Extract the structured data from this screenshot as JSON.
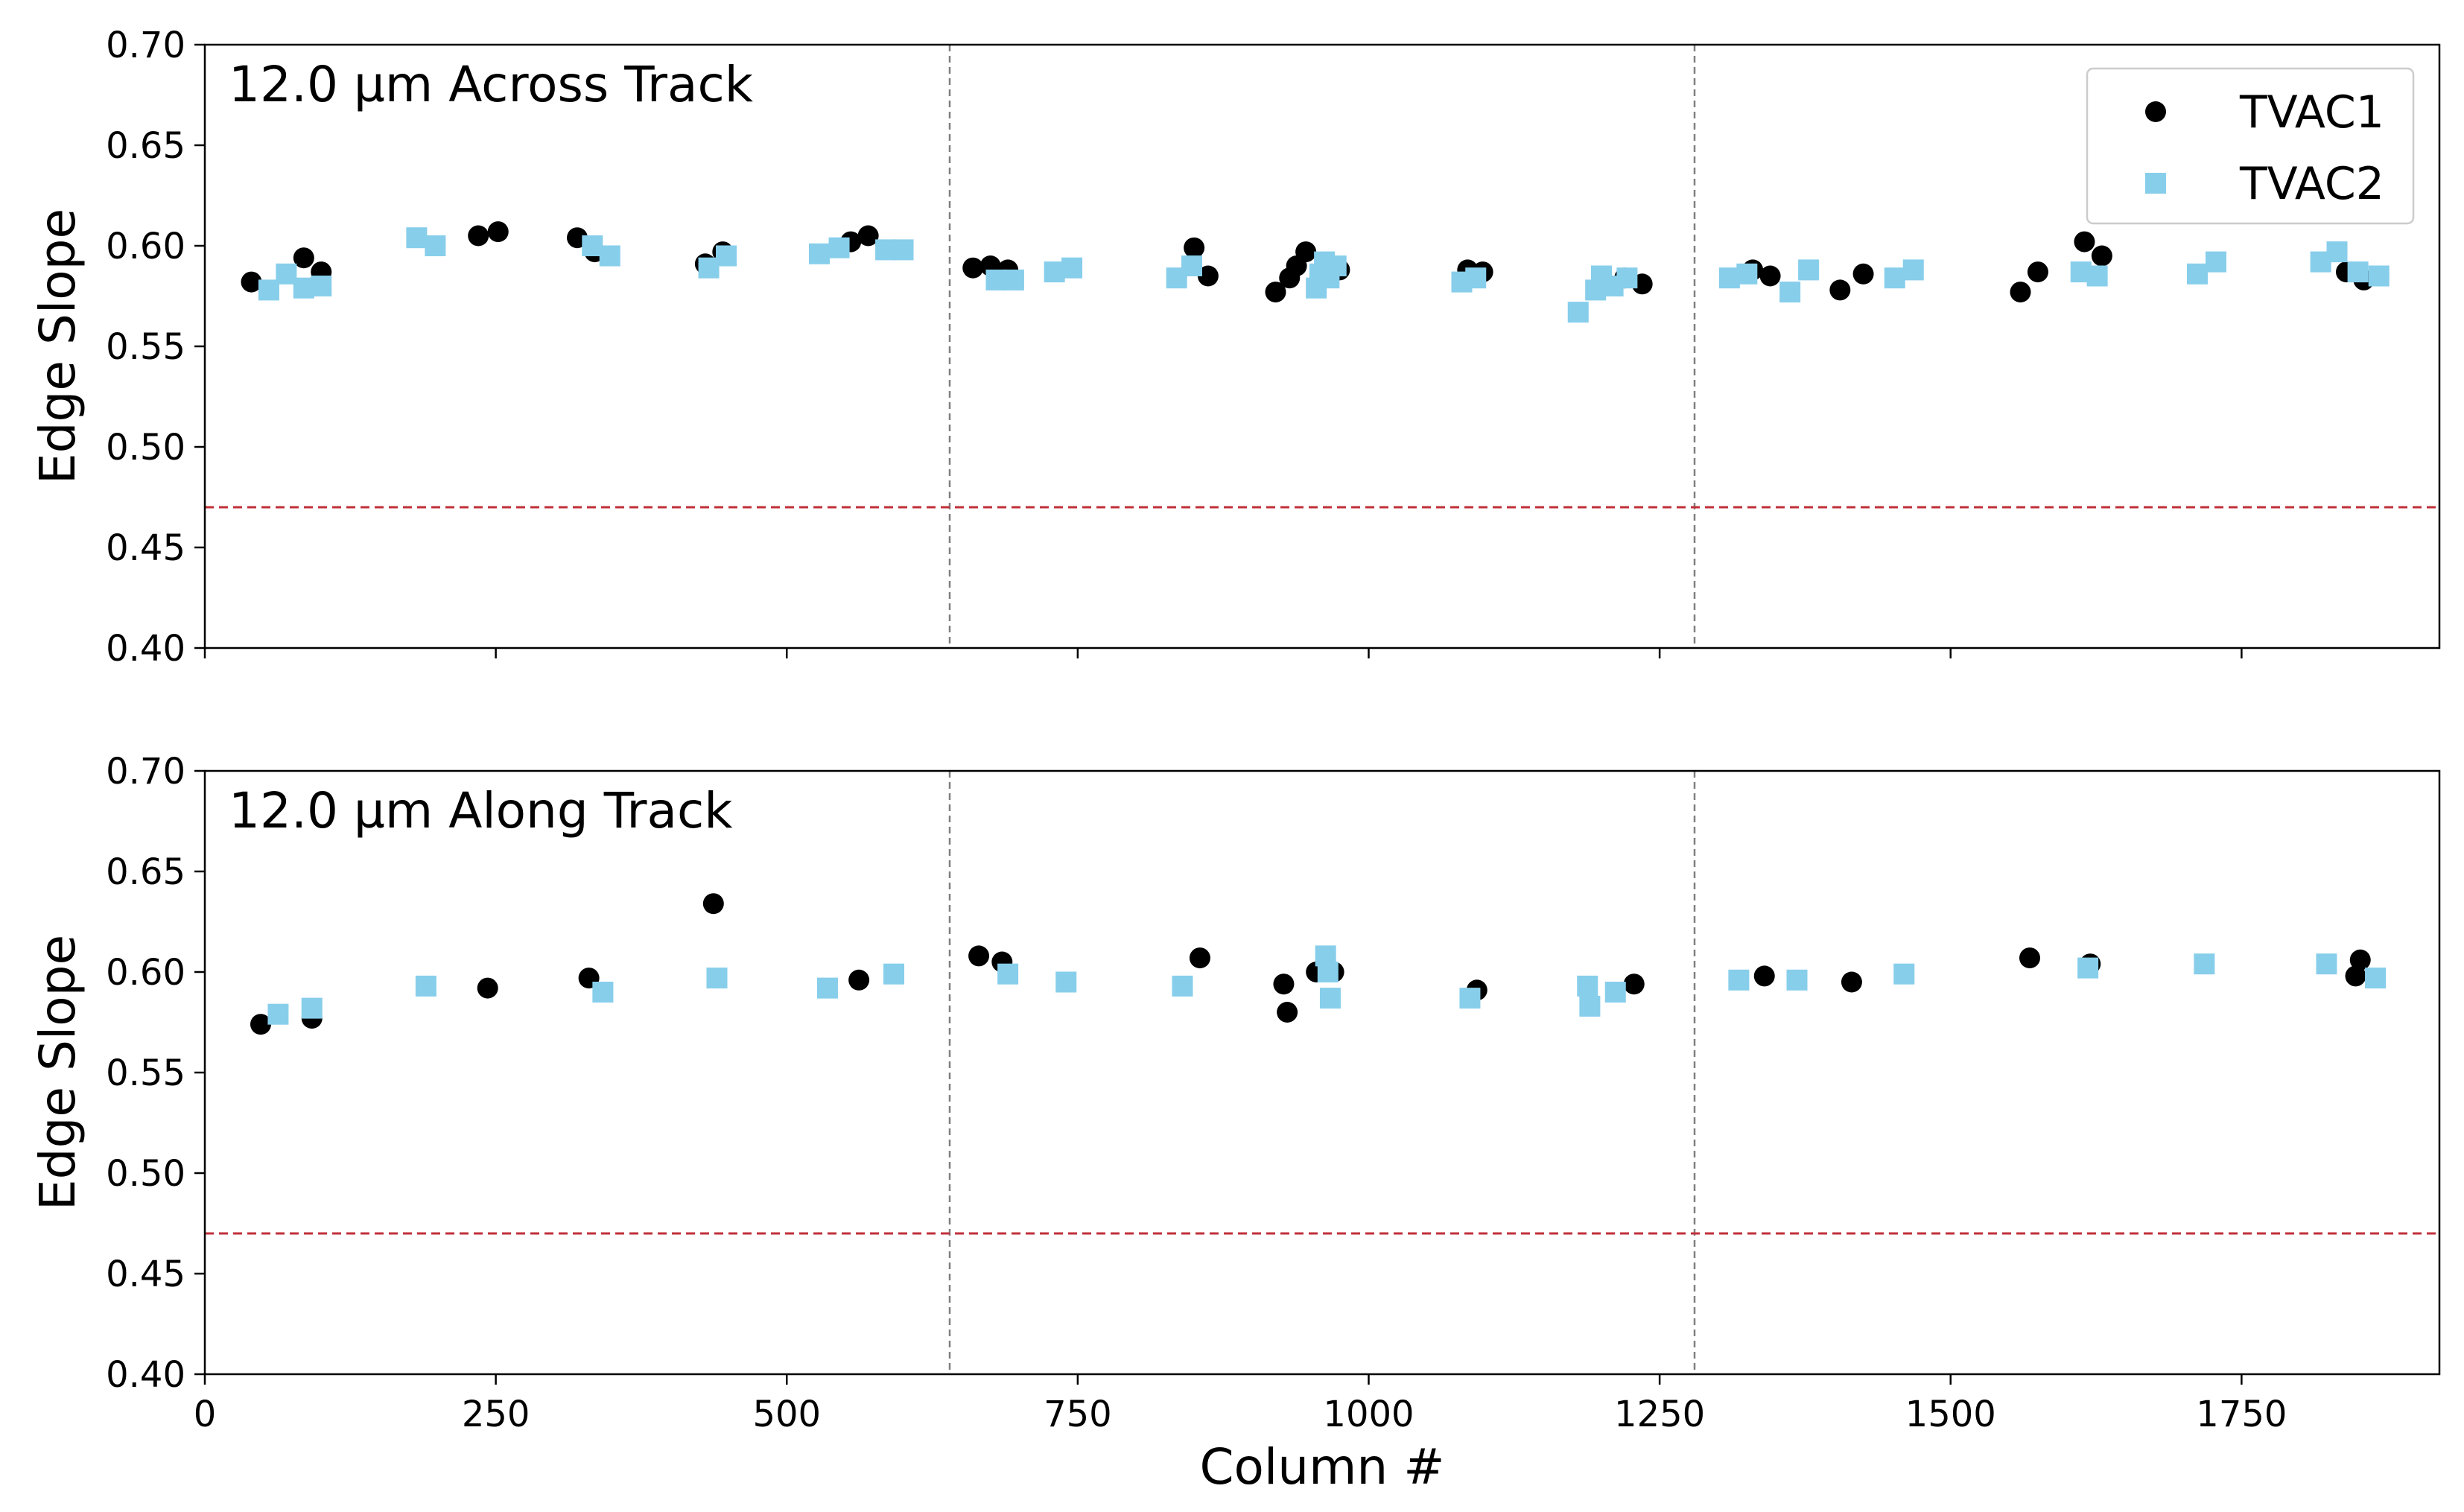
{
  "chart_data": {
    "type": "scatter",
    "xlabel": "Column #",
    "xlim": [
      0,
      1920
    ],
    "xticks": [
      0,
      250,
      500,
      750,
      1000,
      1250,
      1500,
      1750
    ],
    "xtick_labels": [
      "0",
      "250",
      "500",
      "750",
      "1000",
      "1250",
      "1500",
      "1750"
    ],
    "ylim": [
      0.4,
      0.7
    ],
    "yticks": [
      0.4,
      0.45,
      0.5,
      0.55,
      0.6,
      0.65,
      0.7
    ],
    "ytick_labels": [
      "0.40",
      "0.45",
      "0.50",
      "0.55",
      "0.60",
      "0.65",
      "0.70"
    ],
    "shared_x": true,
    "legend": {
      "placement": "top-right",
      "entries": [
        "TVAC1",
        "TVAC2"
      ]
    },
    "reference_lines": {
      "horizontal_threshold": {
        "y": 0.47,
        "color": "#c0303a",
        "style": "dashed"
      },
      "vertical_dividers": {
        "x": [
          640,
          1280
        ],
        "color": "#808080",
        "style": "dashed"
      }
    },
    "colors": {
      "TVAC1": "#000000",
      "TVAC2": "#87ceeb"
    },
    "panels": [
      {
        "title": "12.0 µm Across Track",
        "ylabel": "Edge Slope",
        "series": [
          {
            "name": "TVAC1",
            "marker": "circle",
            "x": [
              40,
              85,
              100,
              235,
              252,
              320,
              335,
              430,
              445,
              555,
              570,
              660,
              675,
              690,
              850,
              862,
              920,
              932,
              938,
              946,
              960,
              975,
              1085,
              1098,
              1220,
              1235,
              1330,
              1345,
              1405,
              1425,
              1560,
              1575,
              1615,
              1630,
              1840,
              1855
            ],
            "y": [
              0.582,
              0.594,
              0.587,
              0.605,
              0.607,
              0.604,
              0.597,
              0.591,
              0.597,
              0.602,
              0.605,
              0.589,
              0.59,
              0.588,
              0.599,
              0.585,
              0.577,
              0.584,
              0.59,
              0.597,
              0.585,
              0.588,
              0.588,
              0.587,
              0.584,
              0.581,
              0.588,
              0.585,
              0.578,
              0.586,
              0.577,
              0.587,
              0.602,
              0.595,
              0.587,
              0.583
            ]
          },
          {
            "name": "TVAC2",
            "marker": "square",
            "x": [
              55,
              70,
              85,
              100,
              182,
              198,
              333,
              348,
              433,
              448,
              528,
              545,
              585,
              600,
              680,
              695,
              730,
              745,
              835,
              848,
              955,
              958,
              962,
              966,
              972,
              1080,
              1092,
              1180,
              1195,
              1200,
              1210,
              1222,
              1310,
              1325,
              1362,
              1378,
              1452,
              1468,
              1612,
              1626,
              1712,
              1728,
              1818,
              1832,
              1850,
              1868
            ],
            "y": [
              0.578,
              0.586,
              0.579,
              0.58,
              0.604,
              0.6,
              0.6,
              0.595,
              0.589,
              0.595,
              0.596,
              0.599,
              0.598,
              0.598,
              0.583,
              0.583,
              0.587,
              0.589,
              0.584,
              0.59,
              0.579,
              0.586,
              0.592,
              0.584,
              0.59,
              0.582,
              0.584,
              0.567,
              0.578,
              0.585,
              0.58,
              0.584,
              0.584,
              0.586,
              0.577,
              0.588,
              0.584,
              0.588,
              0.587,
              0.585,
              0.586,
              0.592,
              0.592,
              0.597,
              0.587,
              0.585
            ]
          }
        ]
      },
      {
        "title": "12.0 µm Along Track",
        "ylabel": "Edge Slope",
        "series": [
          {
            "name": "TVAC1",
            "marker": "circle",
            "x": [
              48,
              92,
              243,
              330,
              437,
              562,
              665,
              685,
              855,
              927,
              930,
              955,
              970,
              1093,
              1228,
              1340,
              1415,
              1568,
              1620,
              1848,
              1852
            ],
            "y": [
              0.574,
              0.577,
              0.592,
              0.597,
              0.634,
              0.596,
              0.608,
              0.605,
              0.607,
              0.594,
              0.58,
              0.6,
              0.6,
              0.591,
              0.594,
              0.598,
              0.595,
              0.607,
              0.604,
              0.598,
              0.606
            ]
          },
          {
            "name": "TVAC2",
            "marker": "square",
            "x": [
              63,
              92,
              190,
              342,
              440,
              535,
              592,
              690,
              740,
              840,
              963,
              965,
              967,
              1087,
              1188,
              1190,
              1212,
              1318,
              1368,
              1460,
              1618,
              1718,
              1823,
              1865
            ],
            "y": [
              0.579,
              0.582,
              0.593,
              0.59,
              0.597,
              0.592,
              0.599,
              0.599,
              0.595,
              0.593,
              0.608,
              0.6,
              0.587,
              0.587,
              0.593,
              0.583,
              0.59,
              0.596,
              0.596,
              0.599,
              0.602,
              0.604,
              0.604,
              0.597
            ]
          }
        ]
      }
    ]
  }
}
